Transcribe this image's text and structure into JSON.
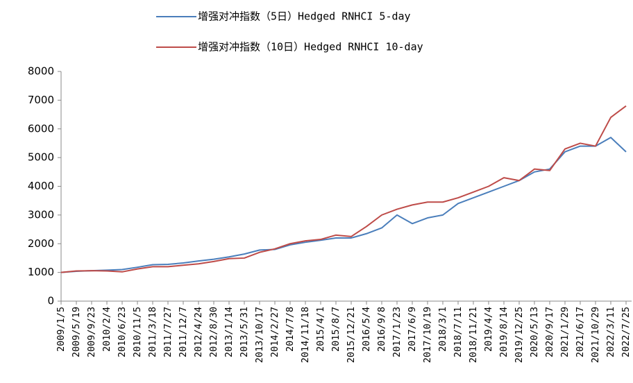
{
  "chart_data": {
    "type": "line",
    "categories": [
      "2009/1/5",
      "2009/5/19",
      "2009/9/23",
      "2010/2/4",
      "2010/6/23",
      "2010/11/5",
      "2011/3/18",
      "2011/7/27",
      "2011/12/7",
      "2012/4/24",
      "2012/8/30",
      "2013/1/14",
      "2013/5/31",
      "2013/10/17",
      "2014/2/27",
      "2014/7/8",
      "2014/11/18",
      "2015/4/1",
      "2015/8/7",
      "2015/12/21",
      "2016/5/4",
      "2016/9/8",
      "2017/1/23",
      "2017/6/9",
      "2017/10/19",
      "2018/3/1",
      "2018/7/11",
      "2018/11/21",
      "2019/4/4",
      "2019/8/14",
      "2019/12/25",
      "2020/5/13",
      "2020/9/17",
      "2021/1/29",
      "2021/6/17",
      "2021/10/29",
      "2022/3/11",
      "2022/7/25"
    ],
    "series": [
      {
        "name": "增强对冲指数（5日）Hedged RNHCI 5-day",
        "color": "#4a7ebb",
        "values": [
          1000,
          1040,
          1060,
          1080,
          1100,
          1180,
          1270,
          1280,
          1330,
          1400,
          1460,
          1540,
          1640,
          1780,
          1800,
          1960,
          2050,
          2120,
          2200,
          2200,
          2350,
          2550,
          3000,
          2700,
          2900,
          3000,
          3400,
          3600,
          3800,
          4000,
          4200,
          4500,
          4600,
          5200,
          5400,
          5400,
          5700,
          5200
        ]
      },
      {
        "name": "增强对冲指数（10日）Hedged RNHCI 10-day",
        "color": "#be4b48",
        "values": [
          1000,
          1050,
          1060,
          1050,
          1020,
          1120,
          1200,
          1200,
          1250,
          1300,
          1380,
          1480,
          1500,
          1700,
          1820,
          2000,
          2100,
          2150,
          2300,
          2250,
          2600,
          3000,
          3200,
          3350,
          3450,
          3450,
          3600,
          3800,
          4000,
          4300,
          4200,
          4600,
          4550,
          5300,
          5500,
          5400,
          6400,
          6800
        ]
      }
    ],
    "ylim": [
      0,
      8000
    ],
    "yticks": [
      0,
      1000,
      2000,
      3000,
      4000,
      5000,
      6000,
      7000,
      8000
    ],
    "legend": "top"
  }
}
